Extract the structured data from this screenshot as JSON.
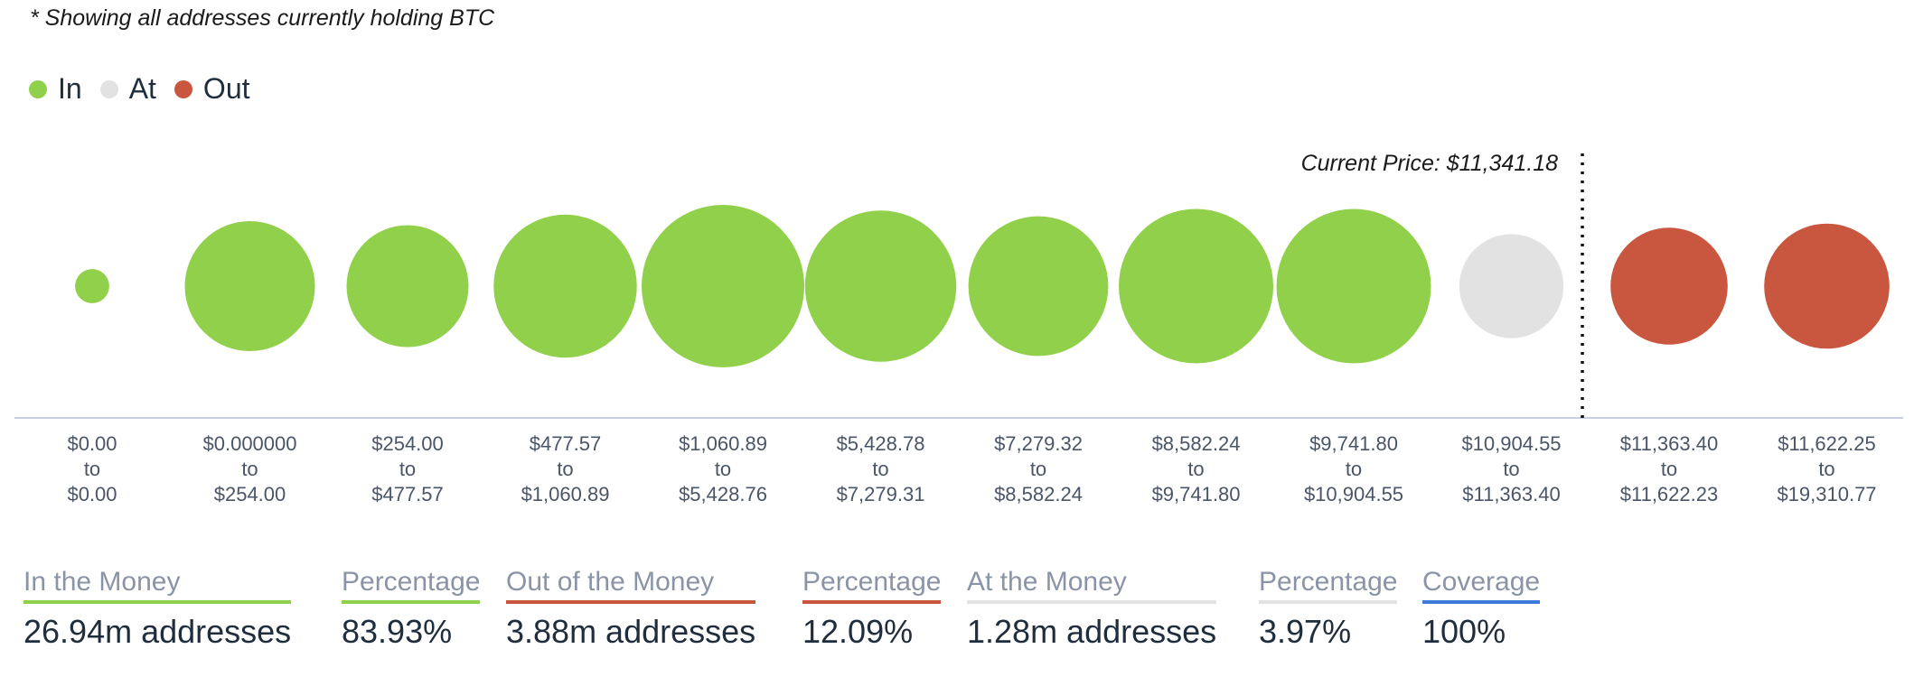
{
  "note": "* Showing all addresses currently holding BTC",
  "legend": [
    {
      "label": "In",
      "color": "#91d04a"
    },
    {
      "label": "At",
      "color": "#e2e2e2"
    },
    {
      "label": "Out",
      "color": "#c9573f"
    }
  ],
  "chart_data": {
    "type": "bubble",
    "current_price_label": "Current Price: $11,341.18",
    "buckets": [
      {
        "range": [
          "$0.00",
          "to",
          "$0.00"
        ],
        "status": "In",
        "relative_size": 0.21
      },
      {
        "range": [
          "$0.000000",
          "to",
          "$254.00"
        ],
        "status": "In",
        "relative_size": 0.8
      },
      {
        "range": [
          "$254.00",
          "to",
          "$477.57"
        ],
        "status": "In",
        "relative_size": 0.75
      },
      {
        "range": [
          "$477.57",
          "to",
          "$1,060.89"
        ],
        "status": "In",
        "relative_size": 0.88
      },
      {
        "range": [
          "$1,060.89",
          "to",
          "$5,428.76"
        ],
        "status": "In",
        "relative_size": 1.0
      },
      {
        "range": [
          "$5,428.78",
          "to",
          "$7,279.31"
        ],
        "status": "In",
        "relative_size": 0.93
      },
      {
        "range": [
          "$7,279.32",
          "to",
          "$8,582.24"
        ],
        "status": "In",
        "relative_size": 0.86
      },
      {
        "range": [
          "$8,582.24",
          "to",
          "$9,741.80"
        ],
        "status": "In",
        "relative_size": 0.95
      },
      {
        "range": [
          "$9,741.80",
          "to",
          "$10,904.55"
        ],
        "status": "In",
        "relative_size": 0.95
      },
      {
        "range": [
          "$10,904.55",
          "to",
          "$11,363.40"
        ],
        "status": "At",
        "relative_size": 0.64
      },
      {
        "range": [
          "$11,363.40",
          "to",
          "$11,622.23"
        ],
        "status": "Out",
        "relative_size": 0.72
      },
      {
        "range": [
          "$11,622.25",
          "to",
          "$19,310.77"
        ],
        "status": "Out",
        "relative_size": 0.77
      }
    ]
  },
  "stats": [
    {
      "label": "In the Money",
      "value": "26.94m addresses",
      "color": "#91d04a"
    },
    {
      "label": "Percentage",
      "value": "83.93%",
      "color": "#91d04a"
    },
    {
      "label": "Out of the Money",
      "value": "3.88m addresses",
      "color": "#c9573f"
    },
    {
      "label": "Percentage",
      "value": "12.09%",
      "color": "#c9573f"
    },
    {
      "label": "At the Money",
      "value": "1.28m addresses",
      "color": "#e2e2e2"
    },
    {
      "label": "Percentage",
      "value": "3.97%",
      "color": "#e2e2e2"
    },
    {
      "label": "Coverage",
      "value": "100%",
      "color": "#3d7bd9"
    }
  ]
}
